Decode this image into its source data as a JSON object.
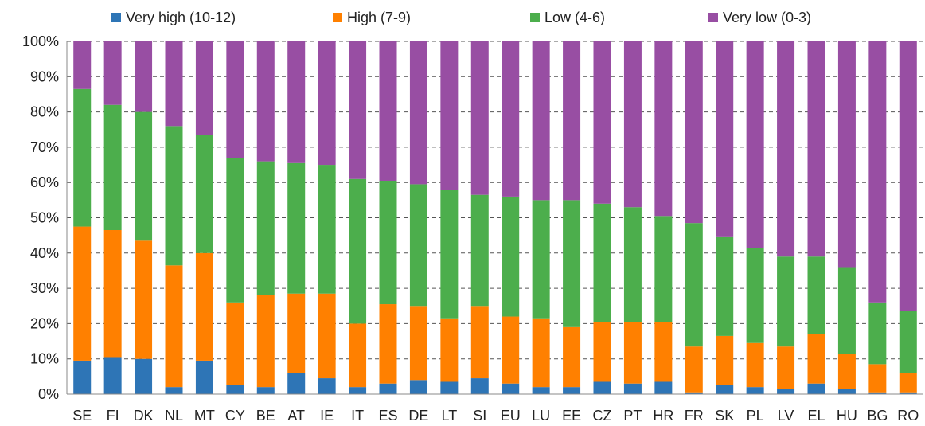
{
  "chart_data": {
    "type": "bar",
    "stacked": true,
    "categories": [
      "SE",
      "FI",
      "DK",
      "NL",
      "MT",
      "CY",
      "BE",
      "AT",
      "IE",
      "IT",
      "ES",
      "DE",
      "LT",
      "SI",
      "EU",
      "LU",
      "EE",
      "CZ",
      "PT",
      "HR",
      "FR",
      "SK",
      "PL",
      "LV",
      "EL",
      "HU",
      "BG",
      "RO"
    ],
    "series": [
      {
        "name": "Very high (10-12)",
        "color": "#2e75b6",
        "values": [
          9.5,
          10.5,
          10,
          2,
          9.5,
          2.5,
          2,
          6,
          4.5,
          2,
          3,
          4,
          3.5,
          4.5,
          3,
          2,
          2,
          3.5,
          3,
          3.5,
          0.5,
          2.5,
          2,
          1.5,
          3,
          1.5,
          0.5,
          0.5
        ]
      },
      {
        "name": "High (7-9)",
        "color": "#ff8000",
        "values": [
          38,
          36,
          33.5,
          34.5,
          30.5,
          23.5,
          26,
          22.5,
          24,
          18,
          22.5,
          21,
          18,
          20.5,
          19,
          19.5,
          17,
          17,
          17.5,
          17,
          13,
          14,
          12.5,
          12,
          14,
          10,
          8,
          5.5
        ]
      },
      {
        "name": "Low (4-6)",
        "color": "#4cae4c",
        "values": [
          39,
          35.5,
          36.5,
          39.5,
          33.5,
          41,
          38,
          37,
          36.5,
          41,
          35,
          34.5,
          36.5,
          31.5,
          34,
          33.5,
          36,
          33.5,
          32.5,
          30,
          35,
          28,
          27,
          25.5,
          22,
          24.5,
          17.5,
          17.5
        ]
      },
      {
        "name": "Very low (0-3)",
        "color": "#984ea3",
        "values": [
          13.5,
          18,
          20,
          24,
          26.5,
          33,
          34,
          34.5,
          35,
          39,
          39.5,
          40.5,
          42,
          43.5,
          44,
          45,
          45,
          46,
          47,
          49.5,
          51.5,
          55.5,
          58.5,
          61,
          61,
          64,
          74,
          76.5
        ]
      }
    ],
    "y_ticks": [
      "0%",
      "10%",
      "20%",
      "30%",
      "40%",
      "50%",
      "60%",
      "70%",
      "80%",
      "90%",
      "100%"
    ],
    "ylim": [
      0,
      100
    ],
    "grid": true,
    "legend_position": "top"
  }
}
